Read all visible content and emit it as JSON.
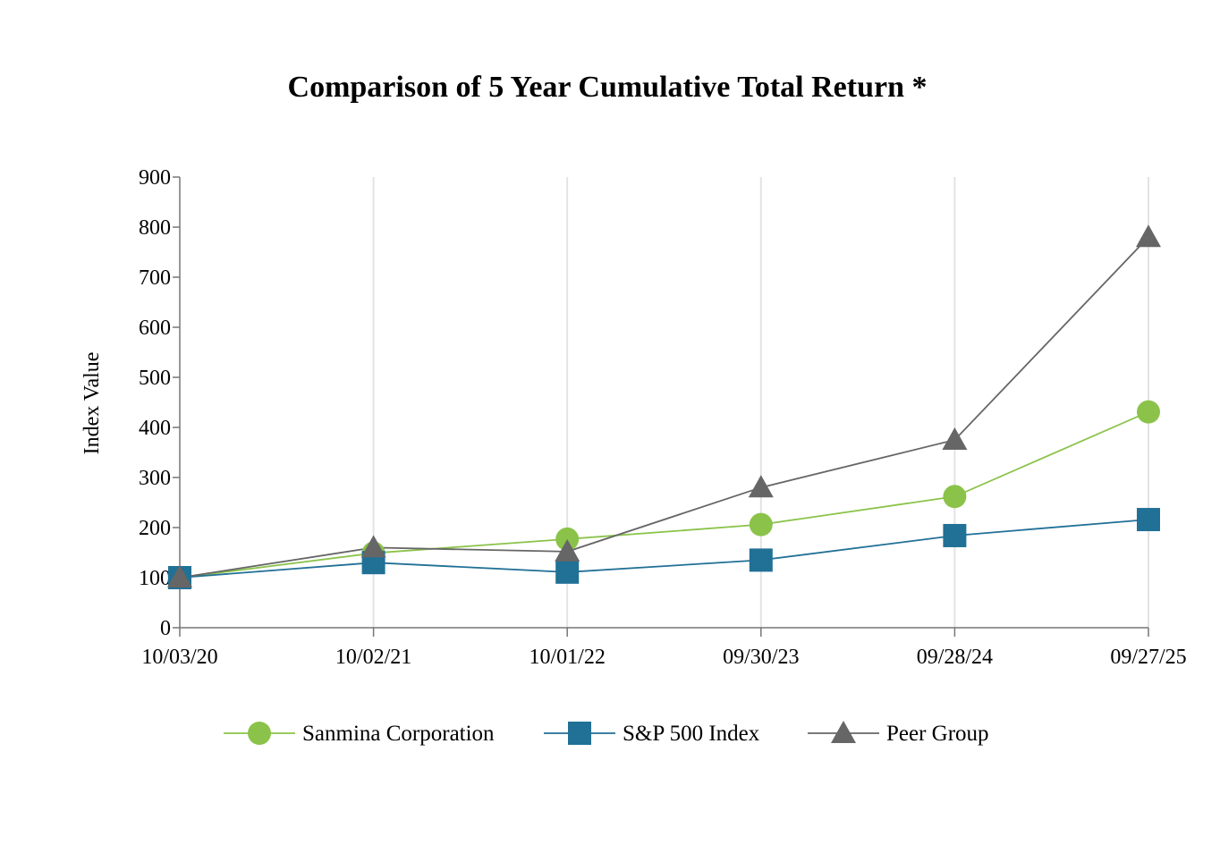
{
  "chart_data": {
    "type": "line",
    "title": "Comparison of 5 Year Cumulative Total Return *",
    "xlabel": "",
    "ylabel": "Index Value",
    "ylim": [
      0,
      900
    ],
    "y_ticks": [
      "0",
      "100",
      "200",
      "300",
      "400",
      "500",
      "600",
      "700",
      "800",
      "900"
    ],
    "categories": [
      "10/03/20",
      "10/02/21",
      "10/01/22",
      "09/30/23",
      "09/28/24",
      "09/27/25"
    ],
    "grid": "vertical",
    "legend_position": "bottom",
    "series": [
      {
        "name": "Sanmina Corporation",
        "marker": "circle",
        "color": "#8bc34a",
        "values": [
          100,
          149,
          177,
          206,
          262,
          431
        ]
      },
      {
        "name": "S&P 500 Index",
        "marker": "square",
        "color": "#217096",
        "values": [
          100,
          130,
          111,
          135,
          184,
          216
        ]
      },
      {
        "name": "Peer Group",
        "marker": "triangle",
        "color": "#666666",
        "values": [
          100,
          160,
          152,
          280,
          375,
          780
        ]
      }
    ]
  }
}
